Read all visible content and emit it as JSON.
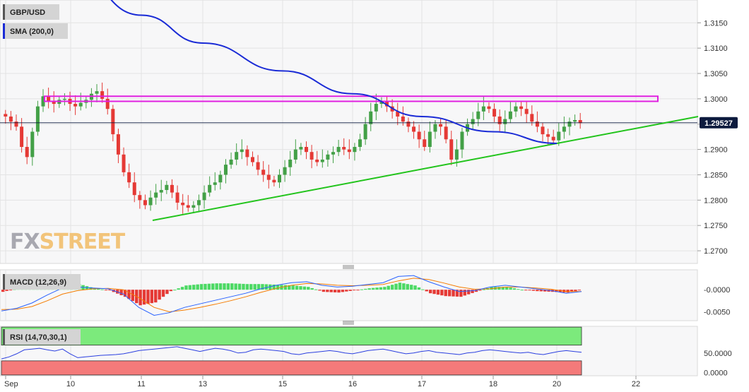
{
  "instrument": "GBP/USD",
  "logo": {
    "part1": "FX",
    "part2": "STREET"
  },
  "colors": {
    "up": "#43a047",
    "down": "#e53935",
    "sma": "#1a2bd6",
    "resistance": "#e020e0",
    "trend": "#22c41c",
    "macd_line": "#2962ff",
    "signal_line": "#f57c00",
    "hist_pos": "#4cd964",
    "hist_neg": "#e53935",
    "rsi_line": "#2b3fe0",
    "rsi_over": "#7cea7c",
    "rsi_under": "#f47a7a",
    "price_tag": "#0d1b3e"
  },
  "chart_data": [
    {
      "type": "candlestick",
      "title": "GBP/USD",
      "indicators": [
        "SMA (200,0)"
      ],
      "ylim": [
        1.2675,
        1.3195
      ],
      "y_ticks": [
        "1.3150",
        "1.3100",
        "1.3050",
        "1.3000",
        "1.2950",
        "1.2900",
        "1.2850",
        "1.2800",
        "1.2750",
        "1.2700"
      ],
      "x_ticks": [
        "Sep",
        "10",
        "11",
        "13",
        "15",
        "16",
        "17",
        "18",
        "20",
        "22"
      ],
      "last_price": "1.29527",
      "resistance_zone": [
        1.2995,
        1.3005
      ],
      "ohlc_closes": [
        1.2965,
        1.2955,
        1.2945,
        1.2905,
        1.2885,
        1.2935,
        1.2985,
        1.3005,
        1.2995,
        1.299,
        1.2998,
        1.3,
        1.299,
        1.2985,
        1.2992,
        1.2998,
        1.301,
        1.3015,
        1.3,
        1.298,
        1.293,
        1.289,
        1.2855,
        1.2835,
        1.281,
        1.28,
        1.279,
        1.2805,
        1.2815,
        1.282,
        1.283,
        1.2815,
        1.2795,
        1.279,
        1.2785,
        1.279,
        1.28,
        1.2815,
        1.283,
        1.2835,
        1.285,
        1.287,
        1.288,
        1.2895,
        1.29,
        1.2885,
        1.2875,
        1.286,
        1.285,
        1.284,
        1.2835,
        1.285,
        1.2865,
        1.288,
        1.29,
        1.2905,
        1.2895,
        1.288,
        1.2875,
        1.288,
        1.289,
        1.2895,
        1.2905,
        1.29,
        1.2895,
        1.2905,
        1.292,
        1.295,
        1.2975,
        1.299,
        1.2995,
        1.2985,
        1.2975,
        1.2965,
        1.2955,
        1.2945,
        1.2935,
        1.292,
        1.2905,
        1.2935,
        1.295,
        1.2945,
        1.292,
        1.288,
        1.29,
        1.2935,
        1.295,
        1.296,
        1.2975,
        1.2985,
        1.298,
        1.2965,
        1.295,
        1.296,
        1.2975,
        1.2985,
        1.298,
        1.297,
        1.2955,
        1.2945,
        1.293,
        1.2925,
        1.2918,
        1.2935,
        1.2945,
        1.2955,
        1.2958,
        1.2952
      ],
      "sma_200": [
        {
          "x": "10",
          "y": 1.325
        },
        {
          "x": "11",
          "y": 1.3165
        },
        {
          "x": "13",
          "y": 1.311
        },
        {
          "x": "15",
          "y": 1.3055
        },
        {
          "x": "16",
          "y": 1.301
        },
        {
          "x": "17",
          "y": 1.2965
        },
        {
          "x": "18",
          "y": 1.2935
        },
        {
          "x": "20",
          "y": 1.2912
        }
      ],
      "trendline": [
        {
          "x": "11",
          "y": 1.276
        },
        {
          "x": "22",
          "y": 1.2965
        }
      ]
    },
    {
      "type": "line",
      "title": "MACD (12,26,9)",
      "ylim": [
        -0.007,
        0.0045
      ],
      "y_ticks": [
        "-0.0000",
        "-0.0050"
      ],
      "series": [
        {
          "name": "MACD",
          "values": [
            -0.0048,
            -0.0042,
            -0.003,
            -0.0012,
            0.0004,
            0.0006,
            0.0004,
            0.0002,
            -0.001,
            -0.004,
            -0.0058,
            -0.0052,
            -0.004,
            -0.0032,
            -0.0024,
            -0.0016,
            -0.0008,
            0.0002,
            0.001,
            0.0016,
            0.0018,
            0.001,
            0.0006,
            0.0008,
            0.0012,
            0.0016,
            0.003,
            0.0032,
            0.0018,
            0.0006,
            -0.0004,
            -0.0002,
            0.0006,
            0.001,
            0.0006,
            0.0002,
            -0.0002,
            -0.0008,
            -0.0004
          ]
        },
        {
          "name": "Signal",
          "values": [
            -0.0045,
            -0.0044,
            -0.0038,
            -0.0025,
            -0.001,
            -0.0002,
            0.0002,
            0.0003,
            0.0,
            -0.0018,
            -0.004,
            -0.005,
            -0.0046,
            -0.004,
            -0.0033,
            -0.0025,
            -0.0016,
            -0.0006,
            0.0003,
            0.001,
            0.0014,
            0.0013,
            0.001,
            0.0009,
            0.001,
            0.0012,
            0.002,
            0.0026,
            0.0023,
            0.0015,
            0.0006,
            0.0001,
            0.0002,
            0.0006,
            0.0006,
            0.0004,
            0.0001,
            -0.0004,
            -0.0004
          ]
        }
      ]
    },
    {
      "type": "line",
      "title": "RSI (14,70,30,1)",
      "ylim": [
        -8,
        118
      ],
      "y_ticks": [
        "50.0000",
        "0.0000"
      ],
      "levels": [
        70,
        30
      ],
      "values": [
        35,
        40,
        48,
        58,
        60,
        62,
        58,
        55,
        60,
        48,
        38,
        40,
        42,
        44,
        45,
        46,
        48,
        52,
        56,
        58,
        60,
        62,
        64,
        66,
        62,
        58,
        54,
        58,
        62,
        60,
        56,
        50,
        52,
        58,
        60,
        58,
        56,
        54,
        48,
        46,
        50,
        52,
        54,
        56,
        54,
        50,
        48,
        52,
        56,
        58,
        60,
        56,
        52,
        48,
        50,
        54,
        56,
        52,
        50,
        48,
        46,
        50,
        52,
        56,
        58,
        56,
        54,
        52,
        50,
        52,
        48,
        46,
        50,
        54,
        56,
        54,
        52
      ]
    }
  ]
}
